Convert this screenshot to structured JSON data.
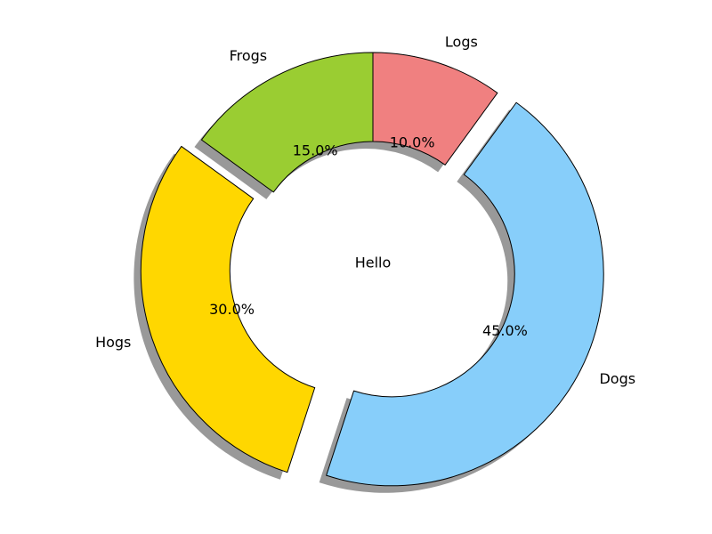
{
  "chart_data": {
    "type": "pie",
    "donut": true,
    "center_text": "Hello",
    "start_angle_deg": 90,
    "counterclockwise": true,
    "shadow": true,
    "slices": [
      {
        "label": "Frogs",
        "value": 15,
        "pct_label": "15.0%",
        "color": "#9acd32",
        "exploded": false
      },
      {
        "label": "Hogs",
        "value": 30,
        "pct_label": "30.0%",
        "color": "#ffd700",
        "exploded": true
      },
      {
        "label": "Dogs",
        "value": 45,
        "pct_label": "45.0%",
        "color": "#87cefa",
        "exploded": true
      },
      {
        "label": "Logs",
        "value": 10,
        "pct_label": "10.0%",
        "color": "#f08080",
        "exploded": false
      }
    ]
  }
}
